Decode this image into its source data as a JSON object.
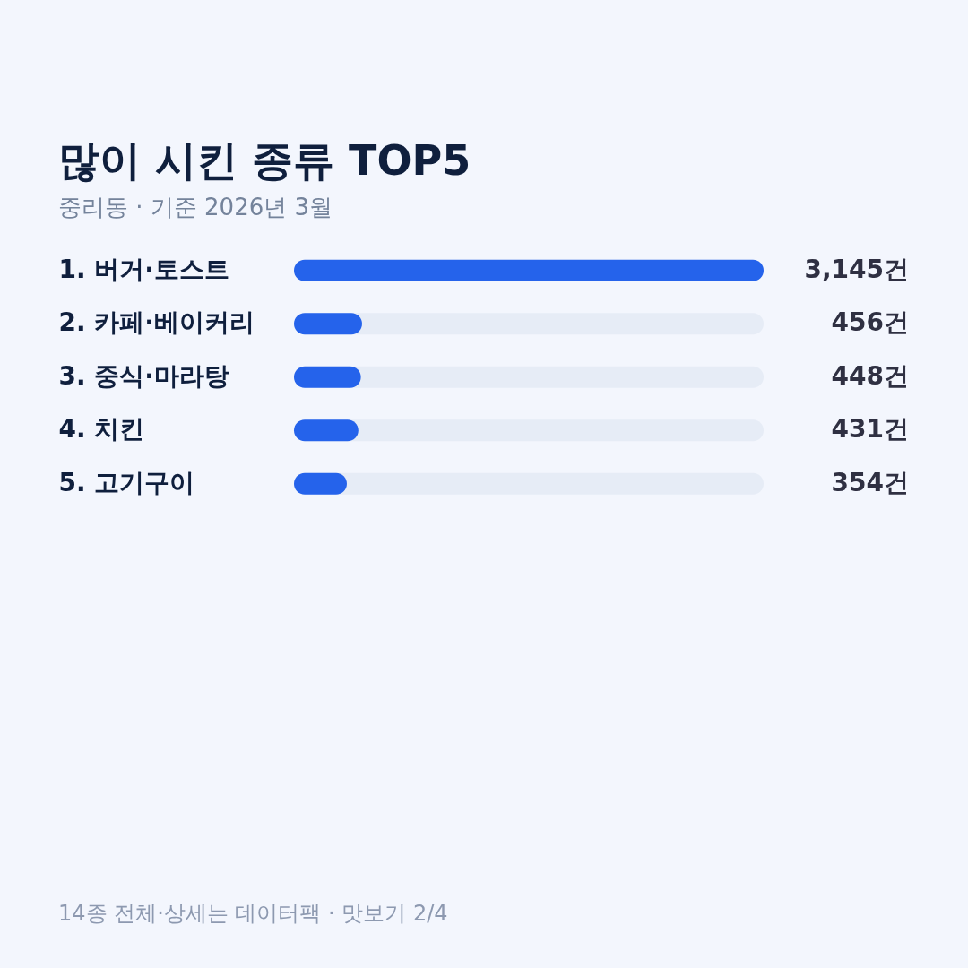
{
  "chart_data": {
    "type": "bar",
    "orientation": "horizontal",
    "title": "많이 시킨 종류 TOP5",
    "subtitle": "중리동 · 기준 2026년 3월",
    "categories": [
      "1.  버거·토스트",
      "2.  카페·베이커리",
      "3.  중식·마라탕",
      "4.  치킨",
      "5.  고기구이"
    ],
    "values": [
      3145,
      456,
      448,
      431,
      354
    ],
    "value_labels": [
      "3,145건",
      "456건",
      "448건",
      "431건",
      "354건"
    ],
    "color": "#2563eb",
    "xlim": [
      0,
      3145
    ],
    "tick_labels": "y",
    "annotations": [
      "14종 전체·상세는 데이터팩 · 맛보기 2/4"
    ]
  }
}
